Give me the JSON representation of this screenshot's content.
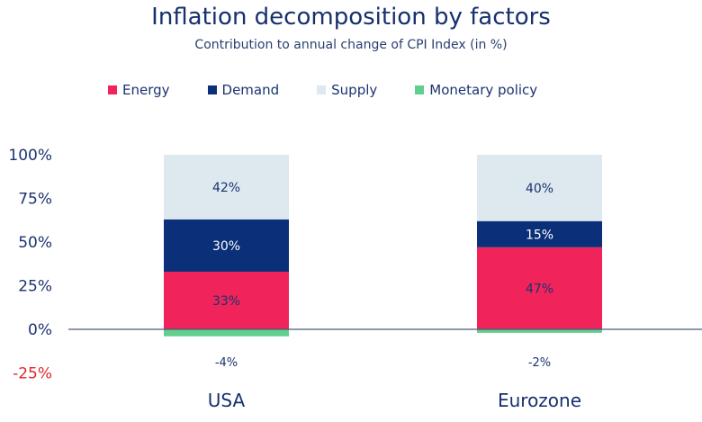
{
  "chart_data": {
    "type": "bar",
    "stacked": true,
    "title": "Inflation decomposition by factors",
    "subtitle": "Contribution to annual change of CPI Index (in %)",
    "categories": [
      "USA",
      "Eurozone"
    ],
    "series": [
      {
        "name": "Energy",
        "color": "#f0245a",
        "values": [
          33,
          47
        ],
        "labels": [
          "33%",
          "47%"
        ]
      },
      {
        "name": "Demand",
        "color": "#0b2f78",
        "values": [
          30,
          15
        ],
        "labels": [
          "30%",
          "15%"
        ]
      },
      {
        "name": "Supply",
        "color": "#dde9ef",
        "values": [
          42,
          40
        ],
        "labels": [
          "42%",
          "40%"
        ]
      },
      {
        "name": "Monetary policy",
        "color": "#5fcf8c",
        "values": [
          -4,
          -2
        ],
        "labels": [
          "-4%",
          "-2%"
        ]
      }
    ],
    "yticks": [
      100,
      75,
      50,
      25,
      0,
      -25
    ],
    "ytick_labels": [
      "100%",
      "75%",
      "50%",
      "25%",
      "0%",
      "-25%"
    ],
    "negative_tick_color": "#e0262b",
    "ylim": [
      -25,
      100
    ],
    "legend_position": "top",
    "grid": false
  }
}
